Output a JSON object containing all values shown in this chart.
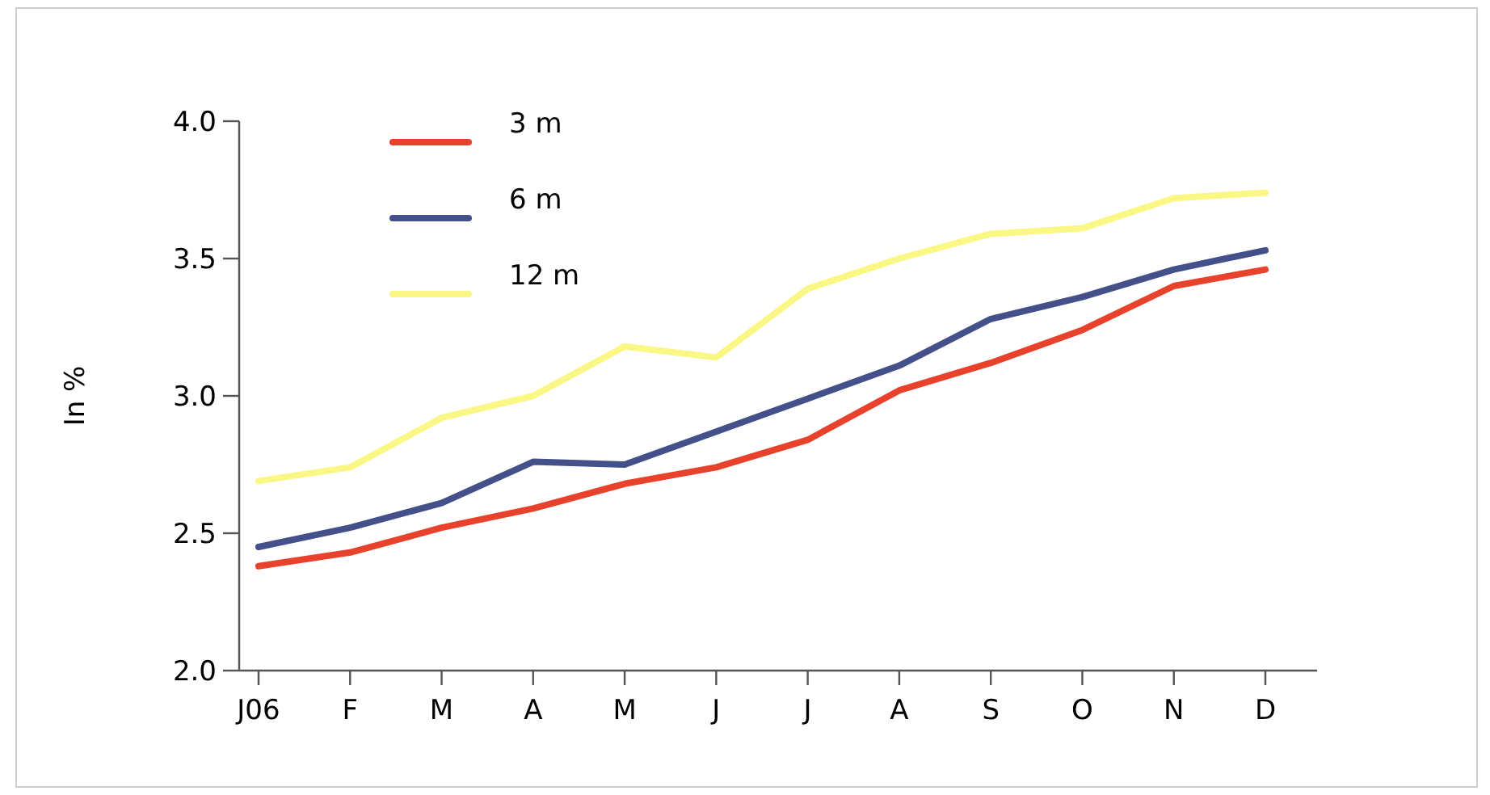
{
  "chart_data": {
    "type": "line",
    "ylabel": "In %",
    "categories": [
      "J06",
      "F",
      "M",
      "A",
      "M",
      "J",
      "J",
      "A",
      "S",
      "O",
      "N",
      "D"
    ],
    "series": [
      {
        "name": "3 m",
        "color": "#e8412c",
        "values": [
          2.38,
          2.43,
          2.52,
          2.59,
          2.68,
          2.74,
          2.84,
          3.02,
          3.12,
          3.24,
          3.4,
          3.46
        ]
      },
      {
        "name": "6 m",
        "color": "#43508a",
        "values": [
          2.45,
          2.52,
          2.61,
          2.76,
          2.75,
          2.87,
          2.99,
          3.11,
          3.28,
          3.36,
          3.46,
          3.53
        ]
      },
      {
        "name": "12 m",
        "color": "#fbf785",
        "values": [
          2.69,
          2.74,
          2.92,
          3.0,
          3.18,
          3.14,
          3.39,
          3.5,
          3.59,
          3.61,
          3.72,
          3.74
        ]
      }
    ],
    "ylim": [
      2.0,
      4.0
    ],
    "yticks": [
      {
        "value": 2.0,
        "label": "2.0"
      },
      {
        "value": 2.5,
        "label": "2.5"
      },
      {
        "value": 3.0,
        "label": "3.0"
      },
      {
        "value": 3.5,
        "label": "3.5"
      },
      {
        "value": 4.0,
        "label": "4.0"
      }
    ],
    "grid": false,
    "legend": "top left",
    "marker": "none",
    "line_style": "solid"
  }
}
